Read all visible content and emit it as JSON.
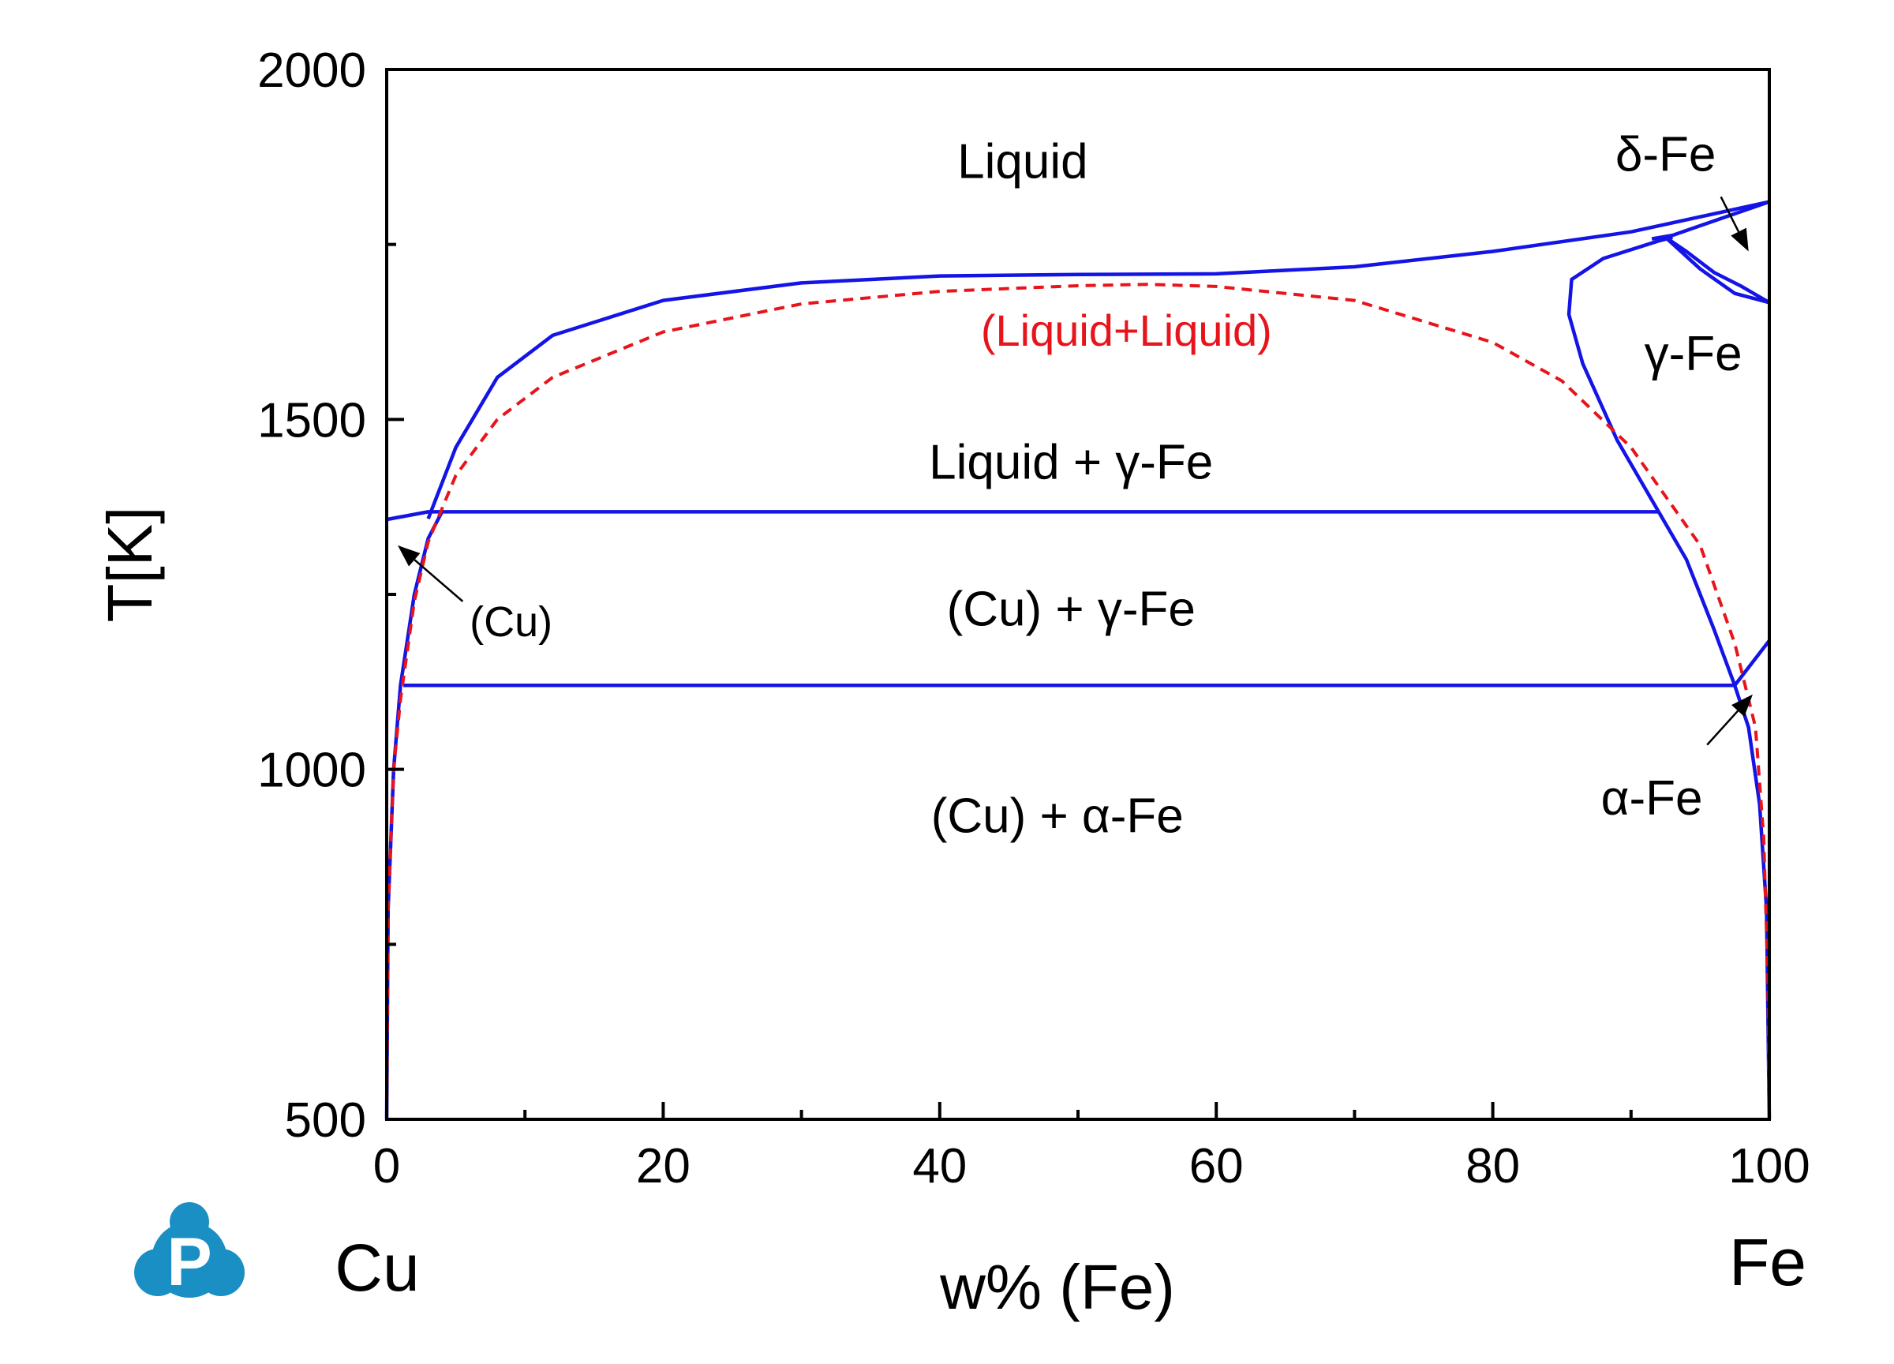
{
  "chart_data": {
    "type": "line",
    "title": "",
    "xlabel": "w% (Fe)",
    "ylabel": "T[K]",
    "xlim": [
      0,
      100
    ],
    "ylim": [
      500,
      2000
    ],
    "x_ticks": [
      "0",
      "20",
      "40",
      "60",
      "80",
      "100"
    ],
    "y_ticks": [
      "500",
      "1000",
      "1500",
      "2000"
    ],
    "x_minor_step": 10,
    "y_minor_step": 250,
    "grid": false,
    "end_labels": {
      "left": "Cu",
      "right": "Fe"
    },
    "colors": {
      "phase_boundary": "#1414e6",
      "miscibility_gap": "#e8141b"
    },
    "series": [
      {
        "style": "solid",
        "color": "#1414e6",
        "points": [
          [
            3,
            1358
          ],
          [
            5,
            1460
          ],
          [
            8,
            1560
          ],
          [
            12,
            1620
          ],
          [
            20,
            1670
          ],
          [
            30,
            1695
          ],
          [
            40,
            1705
          ],
          [
            50,
            1707
          ],
          [
            60,
            1708
          ],
          [
            70,
            1718
          ],
          [
            80,
            1740
          ],
          [
            90,
            1768
          ],
          [
            100,
            1811
          ]
        ]
      },
      {
        "style": "solid",
        "color": "#1414e6",
        "points": [
          [
            0,
            1357
          ],
          [
            3,
            1368
          ],
          [
            92,
            1368
          ]
        ]
      },
      {
        "style": "solid",
        "color": "#1414e6",
        "points": [
          [
            0,
            500
          ],
          [
            0.1,
            800
          ],
          [
            0.5,
            1000
          ],
          [
            1,
            1120
          ],
          [
            2,
            1250
          ],
          [
            3,
            1330
          ],
          [
            4,
            1368
          ]
        ]
      },
      {
        "style": "solid",
        "color": "#1414e6",
        "points": [
          [
            1.2,
            1120
          ],
          [
            97.5,
            1120
          ]
        ]
      },
      {
        "style": "solid",
        "color": "#1414e6",
        "points": [
          [
            92,
            1368
          ],
          [
            89,
            1470
          ],
          [
            86.5,
            1580
          ],
          [
            85.5,
            1650
          ],
          [
            85.7,
            1700
          ],
          [
            88,
            1730
          ],
          [
            92,
            1755
          ],
          [
            93,
            1760
          ]
        ]
      },
      {
        "style": "solid",
        "color": "#1414e6",
        "points": [
          [
            92,
            1368
          ],
          [
            94,
            1300
          ],
          [
            96,
            1200
          ],
          [
            97.5,
            1120
          ]
        ]
      },
      {
        "style": "solid",
        "color": "#1414e6",
        "points": [
          [
            91.5,
            1758
          ],
          [
            93,
            1763
          ],
          [
            100,
            1811
          ]
        ]
      },
      {
        "style": "solid",
        "color": "#1414e6",
        "points": [
          [
            92.5,
            1760
          ],
          [
            95,
            1715
          ],
          [
            97.5,
            1680
          ],
          [
            100,
            1667
          ]
        ]
      },
      {
        "style": "solid",
        "color": "#1414e6",
        "points": [
          [
            92.5,
            1760
          ],
          [
            94,
            1740
          ],
          [
            96,
            1710
          ],
          [
            98,
            1690
          ],
          [
            100,
            1667
          ]
        ]
      },
      {
        "style": "solid",
        "color": "#1414e6",
        "points": [
          [
            97.5,
            1120
          ],
          [
            100,
            1184
          ]
        ]
      },
      {
        "style": "solid",
        "color": "#1414e6",
        "points": [
          [
            97.5,
            1120
          ],
          [
            98.5,
            1060
          ],
          [
            99.3,
            950
          ],
          [
            99.8,
            800
          ],
          [
            100,
            500
          ]
        ]
      },
      {
        "style": "dashed",
        "color": "#e8141b",
        "points": [
          [
            0,
            500
          ],
          [
            0.1,
            800
          ],
          [
            0.5,
            1000
          ],
          [
            1,
            1100
          ],
          [
            2,
            1240
          ],
          [
            3,
            1325
          ],
          [
            5,
            1420
          ],
          [
            8,
            1500
          ],
          [
            12,
            1560
          ],
          [
            20,
            1625
          ],
          [
            30,
            1665
          ],
          [
            40,
            1683
          ],
          [
            50,
            1691
          ],
          [
            55,
            1693
          ],
          [
            60,
            1690
          ],
          [
            70,
            1670
          ],
          [
            80,
            1610
          ],
          [
            85,
            1555
          ],
          [
            90,
            1460
          ],
          [
            95,
            1320
          ],
          [
            97.5,
            1180
          ],
          [
            99,
            1060
          ],
          [
            99.6,
            900
          ],
          [
            99.9,
            700
          ],
          [
            100,
            500
          ]
        ]
      }
    ],
    "region_labels": [
      {
        "text": "Liquid",
        "x": 46,
        "y": 1870,
        "color": "black"
      },
      {
        "text": "(Liquid+Liquid)",
        "x": 53.5,
        "y": 1630,
        "color": "red"
      },
      {
        "text": "Liquid + γ-Fe",
        "x": 49.5,
        "y": 1440,
        "color": "black"
      },
      {
        "text": "(Cu) + γ-Fe",
        "x": 49.5,
        "y": 1230,
        "color": "black"
      },
      {
        "text": "(Cu) + α-Fe",
        "x": 48.5,
        "y": 935,
        "color": "black"
      },
      {
        "text": "δ-Fe",
        "x": 92.5,
        "y": 1880,
        "color": "black"
      },
      {
        "text": "γ-Fe",
        "x": 94.5,
        "y": 1595,
        "color": "black"
      },
      {
        "text": "α-Fe",
        "x": 91.5,
        "y": 960,
        "color": "black"
      },
      {
        "text": "(Cu)",
        "x": 9,
        "y": 1215,
        "color": "black"
      }
    ],
    "arrows": [
      {
        "from": [
          96.5,
          1818
        ],
        "to": [
          98.5,
          1740
        ]
      },
      {
        "from": [
          95.5,
          1035
        ],
        "to": [
          98.8,
          1107
        ]
      },
      {
        "from": [
          5.5,
          1240
        ],
        "to": [
          0.8,
          1320
        ]
      }
    ]
  }
}
